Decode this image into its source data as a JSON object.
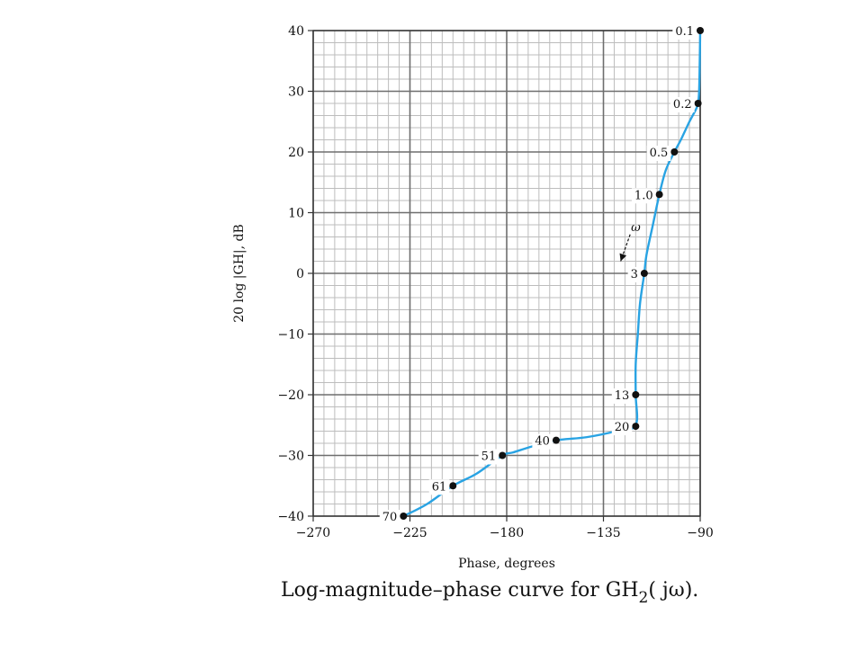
{
  "chart_data": {
    "type": "line",
    "xlabel": "Phase, degrees",
    "ylabel": "20 log |GH|, dB",
    "caption": {
      "main": "Log-magnitude–phase curve for GH",
      "sub": "2",
      "tail": "( jω)."
    },
    "xlim": [
      -270,
      -90
    ],
    "ylim": [
      -40,
      40
    ],
    "x_ticks": [
      -270,
      -225,
      -180,
      -135,
      -90
    ],
    "x_tick_labels": [
      "−270",
      "−225",
      "−180",
      "−135",
      "−90"
    ],
    "y_ticks": [
      40,
      30,
      20,
      10,
      0,
      -10,
      -20,
      -30,
      -40
    ],
    "y_tick_labels": [
      "40",
      "30",
      "20",
      "10",
      "0",
      "−10",
      "−20",
      "−30",
      "−40"
    ],
    "grid": {
      "major_x": 45,
      "minor_x": 5,
      "major_y": 10,
      "minor_y": 2
    },
    "series": [
      {
        "color": "#29a3e3",
        "curve": [
          [
            -90,
            40
          ],
          [
            -90.2,
            35
          ],
          [
            -90.5,
            30
          ],
          [
            -91,
            28
          ],
          [
            -92,
            27
          ],
          [
            -95,
            25
          ],
          [
            -99,
            22
          ],
          [
            -102,
            20
          ],
          [
            -106,
            17
          ],
          [
            -109,
            13
          ],
          [
            -112,
            8
          ],
          [
            -115,
            3
          ],
          [
            -116,
            0
          ],
          [
            -118,
            -5
          ],
          [
            -119,
            -10
          ],
          [
            -120,
            -15
          ],
          [
            -120,
            -20
          ],
          [
            -120,
            -25
          ],
          [
            -129,
            -26
          ],
          [
            -143,
            -27
          ],
          [
            -157,
            -27.5
          ],
          [
            -168,
            -28.5
          ],
          [
            -177,
            -29.5
          ],
          [
            -182,
            -30
          ],
          [
            -194,
            -33
          ],
          [
            -205,
            -35
          ],
          [
            -217,
            -38
          ],
          [
            -228,
            -40
          ]
        ],
        "points": [
          {
            "x": -90,
            "y": 40,
            "label": "0.1"
          },
          {
            "x": -91,
            "y": 28,
            "label": "0.2"
          },
          {
            "x": -102,
            "y": 20,
            "label": "0.5"
          },
          {
            "x": -109,
            "y": 13,
            "label": "1.0"
          },
          {
            "x": -116,
            "y": 0,
            "label": "3"
          },
          {
            "x": -120,
            "y": -20,
            "label": "13"
          },
          {
            "x": -120,
            "y": -25.2,
            "label": "20"
          },
          {
            "x": -157,
            "y": -27.5,
            "label": "40"
          },
          {
            "x": -182,
            "y": -30,
            "label": "51"
          },
          {
            "x": -205,
            "y": -35,
            "label": "61"
          },
          {
            "x": -228,
            "y": -40,
            "label": "70"
          }
        ]
      }
    ],
    "annotation": {
      "text": "ω",
      "x": -123,
      "y": 7,
      "arrow_to": [
        -127,
        2
      ]
    }
  }
}
